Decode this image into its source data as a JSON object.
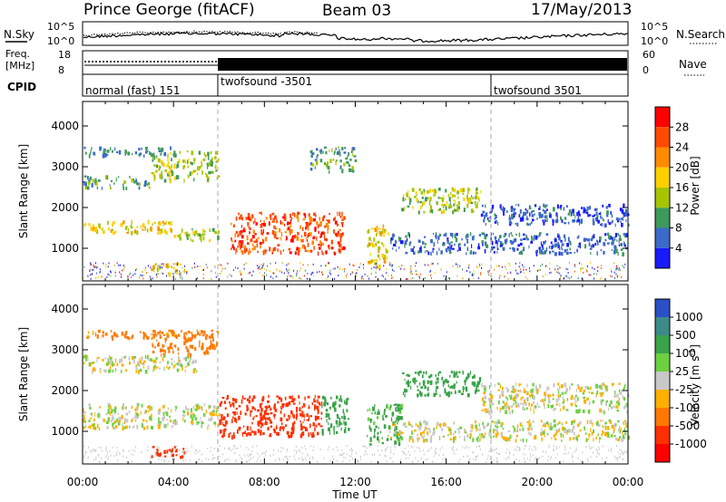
{
  "header": {
    "title": "Prince George (fitACF)",
    "beam": "Beam 03",
    "date": "17/May/2013"
  },
  "noise_panel": {
    "left_label": "N.Sky",
    "right_label": "N.Search",
    "left_ticks": [
      "10^5",
      "10^0"
    ],
    "right_ticks": [
      "10^5",
      "10^0"
    ]
  },
  "freq_panel": {
    "left_label_1": "Freq.",
    "left_label_2": "[MHz]",
    "left_ticks": [
      "18",
      "8"
    ],
    "right_label": "Nave",
    "right_ticks": [
      "60",
      "0"
    ]
  },
  "cpid_panel": {
    "label": "CPID",
    "segments": [
      {
        "start_hour": 0,
        "label": "normal (fast) 151"
      },
      {
        "start_hour": 6,
        "label": "twofsound -3501"
      },
      {
        "start_hour": 18,
        "label": "twofsound 3501"
      }
    ]
  },
  "x_axis": {
    "label": "Time UT",
    "ticks": [
      "00:00",
      "04:00",
      "08:00",
      "12:00",
      "16:00",
      "20:00",
      "00:00"
    ],
    "range_hours": [
      0,
      24
    ]
  },
  "power_colorbar": {
    "title": "Power [dB]",
    "ticks": [
      "28",
      "24",
      "20",
      "16",
      "12",
      "8",
      "4"
    ],
    "colors": [
      "#ff0000",
      "#ff4a00",
      "#ff8c00",
      "#ffd000",
      "#a6c400",
      "#3e9a5a",
      "#3c6ac8",
      "#1a1aff"
    ]
  },
  "velocity_colorbar": {
    "title": "Velocity [m s",
    "title_sup": "-1",
    "title_end": "]",
    "ticks": [
      "1000",
      "500",
      "100",
      "25",
      "-25",
      "-100",
      "-500",
      "-1000"
    ],
    "colors": [
      "#2a50c8",
      "#3d8a8a",
      "#3aa24a",
      "#6cd040",
      "#c8c8c8",
      "#ffb000",
      "#ff7800",
      "#ff3000",
      "#ff0000"
    ]
  },
  "chart_data": [
    {
      "type": "heatmap",
      "name_printed": "",
      "xlabel": "Time UT",
      "ylabel": "Slant Range [km]",
      "y_ticks": [
        "1000",
        "2000",
        "3000",
        "4000"
      ],
      "ylim": [
        200,
        4600
      ],
      "xlim": [
        0,
        24
      ],
      "quantity": "Power [dB]",
      "echo_bands": [
        {
          "t0": 0.0,
          "t1": 4.0,
          "r0": 1400,
          "r1": 1700,
          "value": 18
        },
        {
          "t0": 4.0,
          "t1": 6.0,
          "r0": 1200,
          "r1": 1500,
          "value": 14
        },
        {
          "t0": 0.0,
          "t1": 3.0,
          "r0": 2500,
          "r1": 2800,
          "value": 10
        },
        {
          "t0": 3.0,
          "t1": 6.0,
          "r0": 2700,
          "r1": 3400,
          "value": 14
        },
        {
          "t0": 0.0,
          "t1": 4.0,
          "r0": 3300,
          "r1": 3500,
          "value": 8
        },
        {
          "t0": 6.5,
          "t1": 11.5,
          "r0": 900,
          "r1": 1900,
          "value": 26
        },
        {
          "t0": 10.0,
          "t1": 12.0,
          "r0": 2900,
          "r1": 3500,
          "value": 10
        },
        {
          "t0": 12.5,
          "t1": 13.5,
          "r0": 600,
          "r1": 1600,
          "value": 18
        },
        {
          "t0": 14.0,
          "t1": 17.5,
          "r0": 1900,
          "r1": 2500,
          "value": 14
        },
        {
          "t0": 13.5,
          "t1": 24.0,
          "r0": 900,
          "r1": 1400,
          "value": 6
        },
        {
          "t0": 17.5,
          "t1": 24.0,
          "r0": 1600,
          "r1": 2100,
          "value": 5
        },
        {
          "t0": 3.0,
          "t1": 4.5,
          "r0": 400,
          "r1": 650,
          "value": 18
        }
      ]
    },
    {
      "type": "heatmap",
      "name_printed": "",
      "xlabel": "Time UT",
      "ylabel": "Slant Range [km]",
      "y_ticks": [
        "1000",
        "2000",
        "3000",
        "4000"
      ],
      "ylim": [
        200,
        4600
      ],
      "xlim": [
        0,
        24
      ],
      "quantity": "Velocity [m s^-1]",
      "echo_bands": [
        {
          "t0": 0.0,
          "t1": 6.0,
          "r0": 1100,
          "r1": 1700,
          "value": 0
        },
        {
          "t0": 0.0,
          "t1": 5.0,
          "r0": 2500,
          "r1": 2900,
          "value": 0
        },
        {
          "t0": 3.0,
          "t1": 6.0,
          "r0": 2900,
          "r1": 3500,
          "value": -200
        },
        {
          "t0": 0.0,
          "t1": 4.0,
          "r0": 3300,
          "r1": 3500,
          "value": -150
        },
        {
          "t0": 6.0,
          "t1": 10.5,
          "r0": 900,
          "r1": 1900,
          "value": -600
        },
        {
          "t0": 10.5,
          "t1": 11.7,
          "r0": 1000,
          "r1": 1900,
          "value": 300
        },
        {
          "t0": 12.5,
          "t1": 14.0,
          "r0": 700,
          "r1": 1700,
          "value": 150
        },
        {
          "t0": 14.0,
          "t1": 17.5,
          "r0": 1900,
          "r1": 2500,
          "value": 400
        },
        {
          "t0": 13.5,
          "t1": 24.0,
          "r0": 800,
          "r1": 1300,
          "value": 0
        },
        {
          "t0": 17.5,
          "t1": 24.0,
          "r0": 1500,
          "r1": 2200,
          "value": 0
        },
        {
          "t0": 3.0,
          "t1": 4.5,
          "r0": 400,
          "r1": 650,
          "value": -600
        }
      ]
    }
  ]
}
